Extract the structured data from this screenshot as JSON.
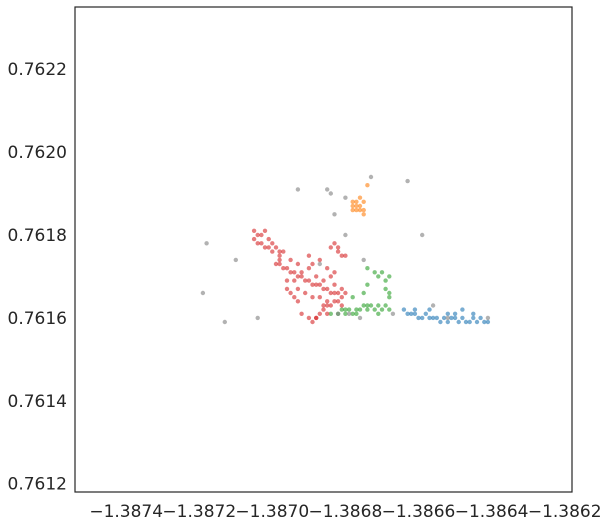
{
  "chart_data": {
    "type": "scatter",
    "title": "",
    "xlabel": "",
    "ylabel": "",
    "xlim": [
      -1.38754,
      -1.38618
    ],
    "ylim": [
      0.76118,
      0.76235
    ],
    "x_ticks": [
      -1.3874,
      -1.3872,
      -1.387,
      -1.3868,
      -1.3866,
      -1.3864,
      -1.3862
    ],
    "x_tick_labels": [
      "−1.3874",
      "−1.3872",
      "−1.3870",
      "−1.3868",
      "−1.3866",
      "−1.3864",
      "−1.3862"
    ],
    "y_ticks": [
      0.7612,
      0.7614,
      0.7616,
      0.7618,
      0.762,
      0.7622
    ],
    "y_tick_labels": [
      "0.7612",
      "0.7614",
      "0.7616",
      "0.7618",
      "0.7620",
      "0.7622"
    ],
    "grid": false,
    "legend": "none",
    "series": [
      {
        "color": "#1f77b4",
        "points": [
          [
            -1.38664,
            0.76162
          ],
          [
            -1.38663,
            0.76161
          ],
          [
            -1.38662,
            0.76161
          ],
          [
            -1.38661,
            0.76161
          ],
          [
            -1.3866,
            0.7616
          ],
          [
            -1.38659,
            0.7616
          ],
          [
            -1.38658,
            0.76161
          ],
          [
            -1.38657,
            0.7616
          ],
          [
            -1.38656,
            0.7616
          ],
          [
            -1.38655,
            0.7616
          ],
          [
            -1.38654,
            0.76159
          ],
          [
            -1.38653,
            0.7616
          ],
          [
            -1.38652,
            0.76159
          ],
          [
            -1.38651,
            0.7616
          ],
          [
            -1.3865,
            0.7616
          ],
          [
            -1.38649,
            0.76159
          ],
          [
            -1.38648,
            0.7616
          ],
          [
            -1.38647,
            0.76159
          ],
          [
            -1.38646,
            0.76159
          ],
          [
            -1.38645,
            0.7616
          ],
          [
            -1.38644,
            0.76159
          ],
          [
            -1.38643,
            0.7616
          ],
          [
            -1.38642,
            0.76159
          ],
          [
            -1.38641,
            0.76159
          ],
          [
            -1.38657,
            0.76162
          ],
          [
            -1.38652,
            0.76161
          ],
          [
            -1.38648,
            0.76162
          ],
          [
            -1.38645,
            0.76161
          ],
          [
            -1.38661,
            0.76162
          ],
          [
            -1.3865,
            0.76161
          ]
        ]
      },
      {
        "color": "#ff7f0e",
        "points": [
          [
            -1.38678,
            0.76186
          ],
          [
            -1.38678,
            0.76187
          ],
          [
            -1.38677,
            0.76188
          ],
          [
            -1.38677,
            0.76186
          ],
          [
            -1.38676,
            0.76187
          ],
          [
            -1.38676,
            0.76189
          ],
          [
            -1.38675,
            0.76186
          ],
          [
            -1.38675,
            0.76188
          ],
          [
            -1.38678,
            0.76188
          ],
          [
            -1.38676,
            0.76186
          ],
          [
            -1.38677,
            0.76187
          ],
          [
            -1.38675,
            0.76185
          ],
          [
            -1.38674,
            0.76192
          ]
        ]
      },
      {
        "color": "#2ca02c",
        "points": [
          [
            -1.38684,
            0.76161
          ],
          [
            -1.38682,
            0.76161
          ],
          [
            -1.38681,
            0.76162
          ],
          [
            -1.3868,
            0.76161
          ],
          [
            -1.38679,
            0.76162
          ],
          [
            -1.38678,
            0.76161
          ],
          [
            -1.38677,
            0.76162
          ],
          [
            -1.38676,
            0.76162
          ],
          [
            -1.38675,
            0.76163
          ],
          [
            -1.38674,
            0.76162
          ],
          [
            -1.38673,
            0.76163
          ],
          [
            -1.38672,
            0.76162
          ],
          [
            -1.38671,
            0.76163
          ],
          [
            -1.3867,
            0.76162
          ],
          [
            -1.38669,
            0.76163
          ],
          [
            -1.38668,
            0.76162
          ],
          [
            -1.3868,
            0.76162
          ],
          [
            -1.38677,
            0.76161
          ],
          [
            -1.38674,
            0.76163
          ],
          [
            -1.38671,
            0.76161
          ],
          [
            -1.38672,
            0.76171
          ],
          [
            -1.38671,
            0.7617
          ],
          [
            -1.3867,
            0.76171
          ],
          [
            -1.38669,
            0.76169
          ],
          [
            -1.38668,
            0.7617
          ],
          [
            -1.38669,
            0.76167
          ],
          [
            -1.38668,
            0.76166
          ],
          [
            -1.38668,
            0.76165
          ],
          [
            -1.38675,
            0.76166
          ],
          [
            -1.38674,
            0.76168
          ],
          [
            -1.38678,
            0.76165
          ],
          [
            -1.38674,
            0.76172
          ]
        ]
      },
      {
        "color": "#d62728",
        "points": [
          [
            -1.38705,
            0.76181
          ],
          [
            -1.38704,
            0.7618
          ],
          [
            -1.38705,
            0.76179
          ],
          [
            -1.38704,
            0.76178
          ],
          [
            -1.38703,
            0.76178
          ],
          [
            -1.38702,
            0.76177
          ],
          [
            -1.38701,
            0.76177
          ],
          [
            -1.38703,
            0.7618
          ],
          [
            -1.38701,
            0.76179
          ],
          [
            -1.387,
            0.76178
          ],
          [
            -1.38699,
            0.76177
          ],
          [
            -1.38698,
            0.76176
          ],
          [
            -1.38697,
            0.76176
          ],
          [
            -1.38698,
            0.76174
          ],
          [
            -1.38699,
            0.76173
          ],
          [
            -1.38698,
            0.76173
          ],
          [
            -1.38697,
            0.76172
          ],
          [
            -1.38696,
            0.76172
          ],
          [
            -1.38695,
            0.76171
          ],
          [
            -1.38694,
            0.76171
          ],
          [
            -1.38693,
            0.7617
          ],
          [
            -1.38692,
            0.7617
          ],
          [
            -1.38691,
            0.76169
          ],
          [
            -1.3869,
            0.76169
          ],
          [
            -1.38689,
            0.76168
          ],
          [
            -1.38688,
            0.76168
          ],
          [
            -1.38687,
            0.76168
          ],
          [
            -1.38686,
            0.76167
          ],
          [
            -1.38685,
            0.76167
          ],
          [
            -1.38684,
            0.76166
          ],
          [
            -1.38683,
            0.76166
          ],
          [
            -1.38682,
            0.76166
          ],
          [
            -1.38681,
            0.76165
          ],
          [
            -1.38682,
            0.76164
          ],
          [
            -1.38683,
            0.76164
          ],
          [
            -1.38684,
            0.76163
          ],
          [
            -1.38685,
            0.76163
          ],
          [
            -1.38686,
            0.76162
          ],
          [
            -1.38687,
            0.76161
          ],
          [
            -1.38688,
            0.7616
          ],
          [
            -1.38689,
            0.76159
          ],
          [
            -1.38696,
            0.76167
          ],
          [
            -1.38695,
            0.76166
          ],
          [
            -1.38694,
            0.76165
          ],
          [
            -1.38693,
            0.76164
          ],
          [
            -1.38696,
            0.76169
          ],
          [
            -1.3869,
            0.76172
          ],
          [
            -1.38688,
            0.7617
          ],
          [
            -1.38686,
            0.76169
          ],
          [
            -1.38684,
            0.7617
          ],
          [
            -1.38683,
            0.76168
          ],
          [
            -1.38693,
            0.76173
          ],
          [
            -1.38692,
            0.76171
          ],
          [
            -1.3869,
            0.76175
          ],
          [
            -1.38689,
            0.76173
          ],
          [
            -1.38687,
            0.76174
          ],
          [
            -1.38685,
            0.76172
          ],
          [
            -1.38683,
            0.76171
          ],
          [
            -1.38682,
            0.76176
          ],
          [
            -1.38681,
            0.76175
          ],
          [
            -1.38684,
            0.76177
          ],
          [
            -1.38683,
            0.76178
          ],
          [
            -1.38682,
            0.76177
          ],
          [
            -1.3868,
            0.76175
          ],
          [
            -1.38686,
            0.76163
          ],
          [
            -1.38685,
            0.76161
          ],
          [
            -1.38692,
            0.76161
          ],
          [
            -1.3869,
            0.7616
          ],
          [
            -1.38698,
            0.76175
          ],
          [
            -1.387,
            0.76176
          ],
          [
            -1.38702,
            0.76181
          ],
          [
            -1.38693,
            0.76167
          ],
          [
            -1.38691,
            0.76166
          ],
          [
            -1.38689,
            0.76165
          ],
          [
            -1.38687,
            0.76165
          ],
          [
            -1.38685,
            0.76164
          ],
          [
            -1.38681,
            0.76163
          ],
          [
            -1.3868,
            0.76166
          ],
          [
            -1.38681,
            0.76167
          ],
          [
            -1.38688,
            0.7616
          ],
          [
            -1.38695,
            0.76174
          ],
          [
            -1.38694,
            0.76169
          ]
        ]
      },
      {
        "color": "#7f7f7f",
        "points": [
          [
            -1.38718,
            0.76178
          ],
          [
            -1.3871,
            0.76174
          ],
          [
            -1.38719,
            0.76166
          ],
          [
            -1.38713,
            0.76159
          ],
          [
            -1.38704,
            0.7616
          ],
          [
            -1.38693,
            0.76191
          ],
          [
            -1.38685,
            0.76191
          ],
          [
            -1.38684,
            0.7619
          ],
          [
            -1.3868,
            0.76189
          ],
          [
            -1.38673,
            0.76194
          ],
          [
            -1.38663,
            0.76193
          ],
          [
            -1.38659,
            0.7618
          ],
          [
            -1.38683,
            0.76185
          ],
          [
            -1.3868,
            0.7618
          ],
          [
            -1.38675,
            0.76174
          ],
          [
            -1.38676,
            0.7616
          ],
          [
            -1.38667,
            0.76161
          ],
          [
            -1.38656,
            0.76163
          ],
          [
            -1.38652,
            0.7616
          ],
          [
            -1.38641,
            0.7616
          ],
          [
            -1.38679,
            0.76161
          ],
          [
            -1.38687,
            0.76173
          ],
          [
            -1.38682,
            0.76161
          ]
        ]
      }
    ]
  }
}
